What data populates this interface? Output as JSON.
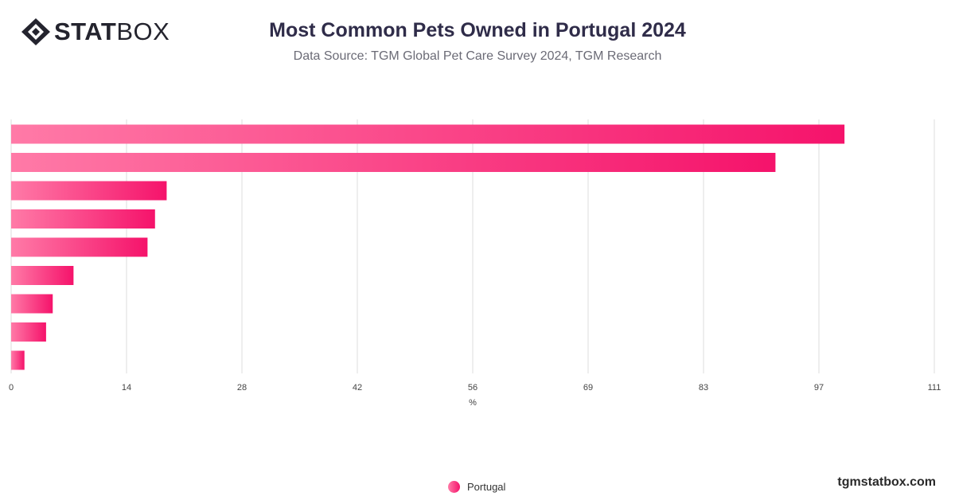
{
  "header": {
    "logo_bold": "STAT",
    "logo_light": "BOX",
    "title": "Most Common Pets Owned in Portugal 2024",
    "subtitle": "Data Source: TGM Global Pet Care Survey 2024, TGM Research"
  },
  "chart_data": {
    "type": "bar",
    "orientation": "horizontal",
    "xlabel": "%",
    "xlim": [
      0,
      111
    ],
    "xticks": [
      "0",
      "14",
      "28",
      "42",
      "56",
      "69",
      "83",
      "97",
      "111"
    ],
    "series": [
      {
        "name": "Portugal",
        "values": [
          100.2,
          91.9,
          18.7,
          17.3,
          16.4,
          7.5,
          5.0,
          4.2,
          1.6
        ]
      }
    ],
    "grid": true,
    "legend_position": "bottom-center",
    "colors": {
      "bar_start": "#ff7aa7",
      "bar_end": "#f5136b",
      "grid": "#dcdcdc",
      "tick": "#444444"
    }
  },
  "legend": {
    "label": "Portugal"
  },
  "footer": {
    "url": "tgmstatbox.com"
  }
}
